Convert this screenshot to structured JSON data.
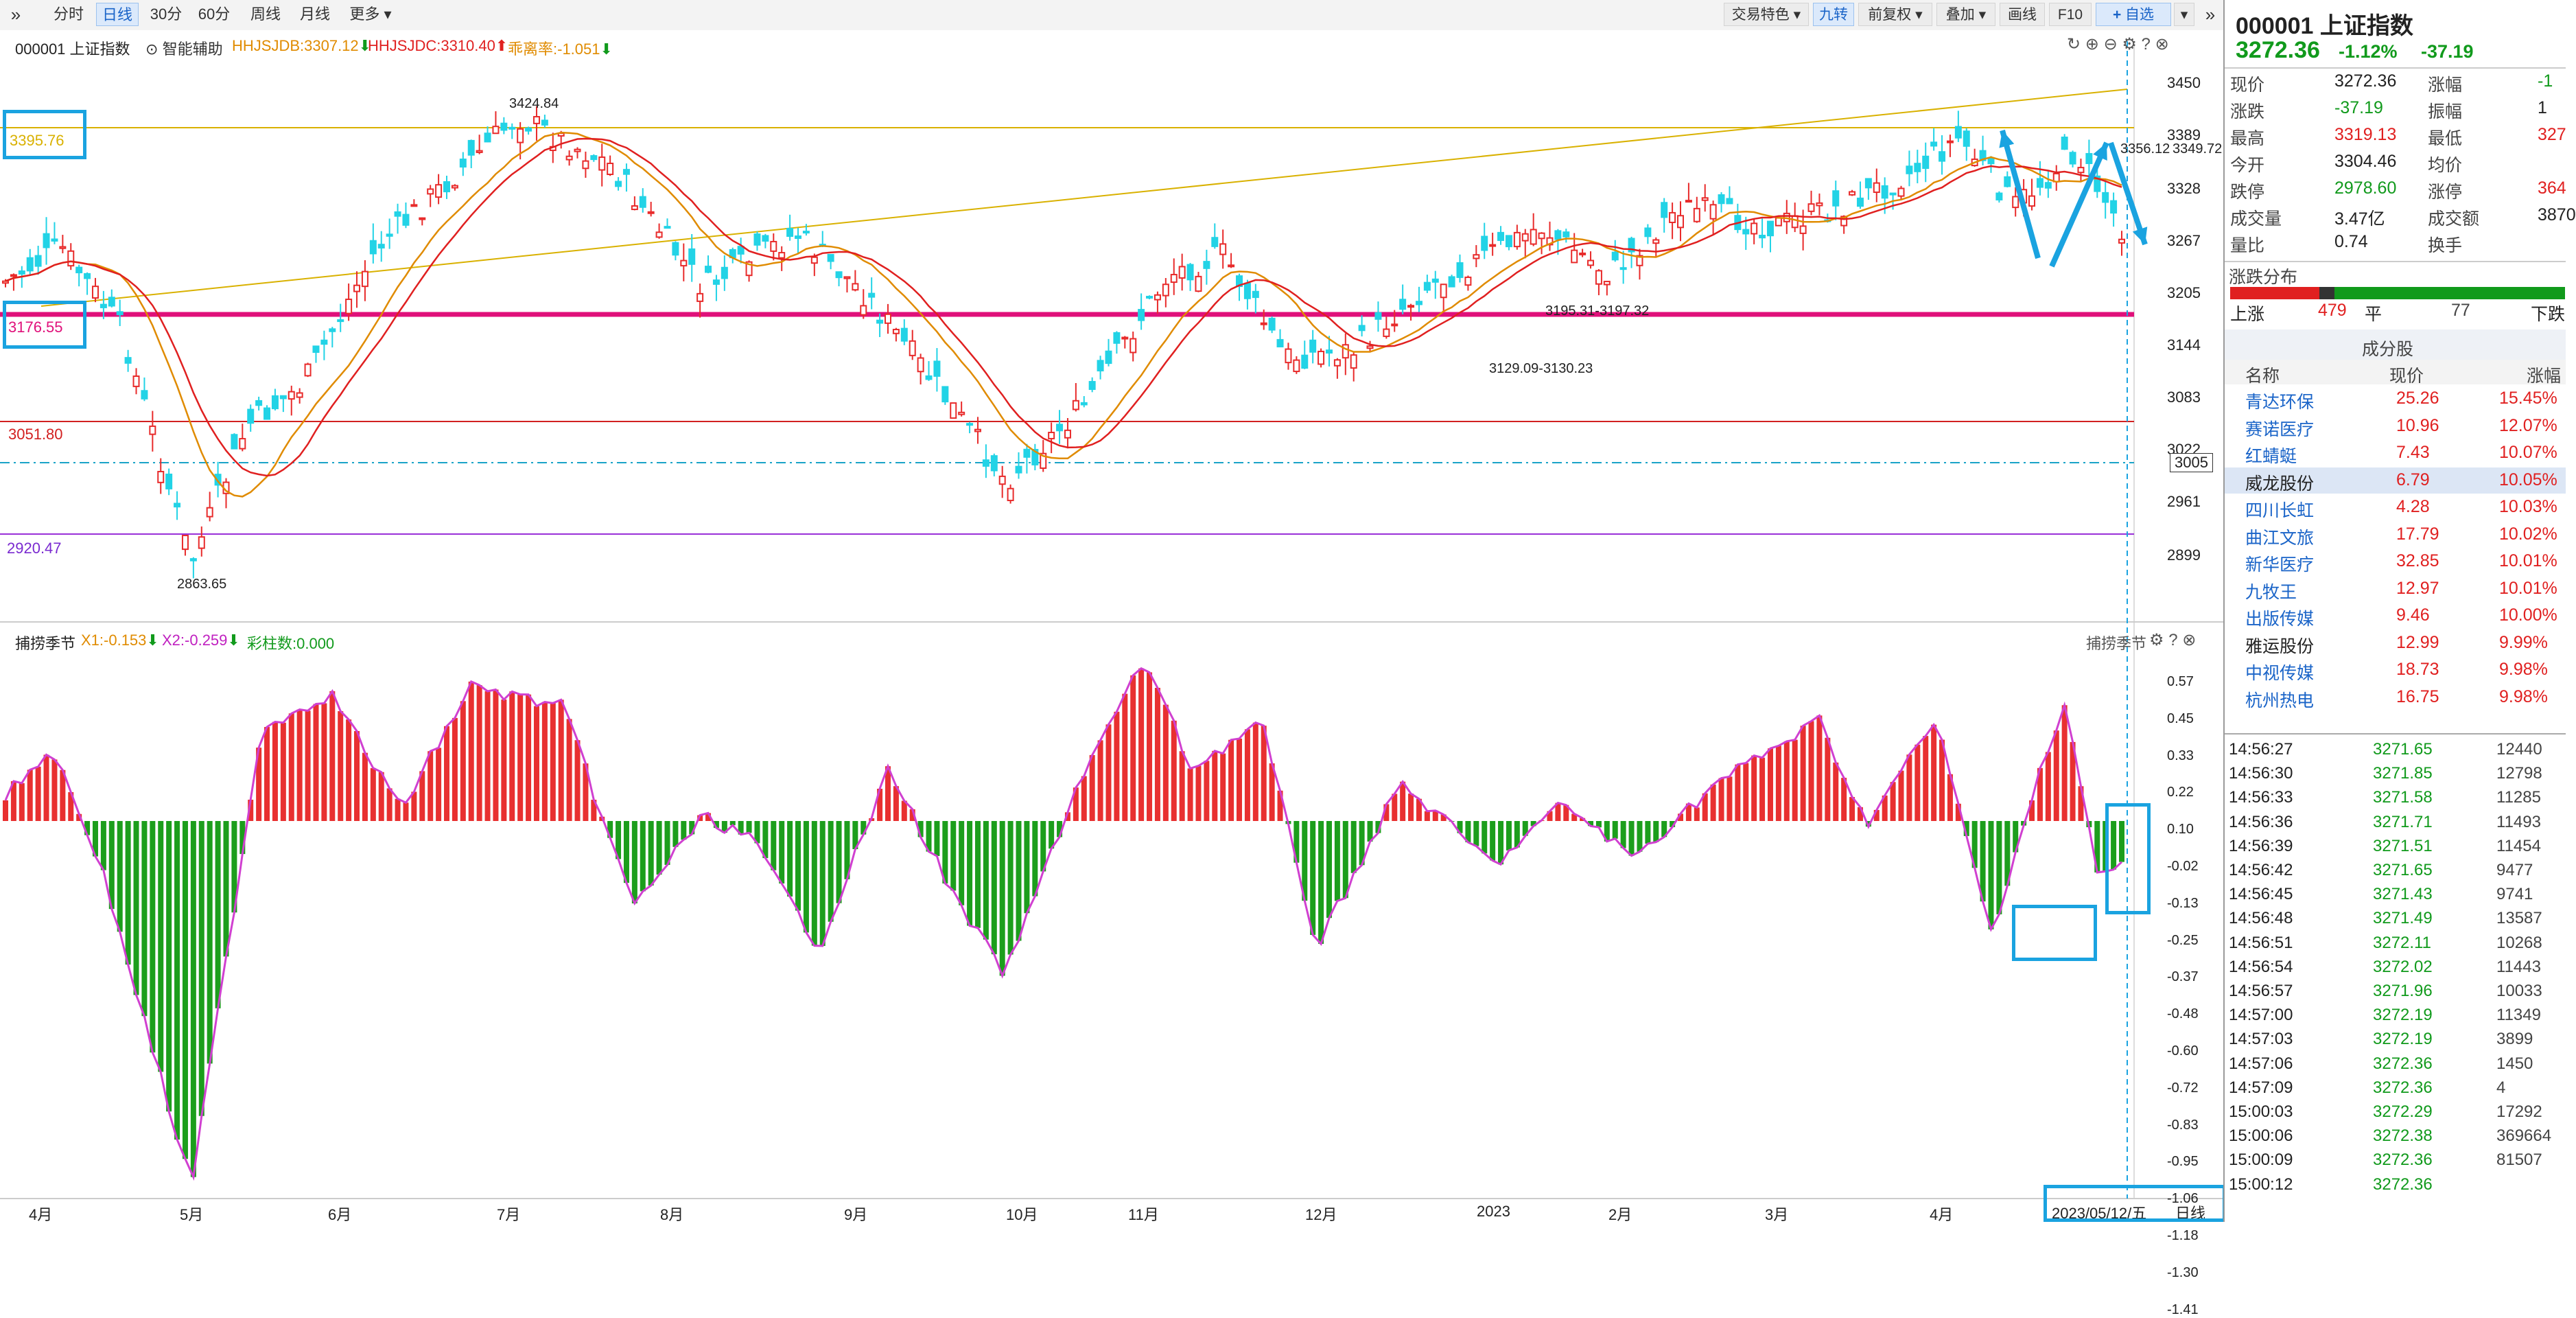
{
  "toolbar": {
    "nav_icon": "double-chevron-right-icon",
    "tabs": [
      "分时",
      "日线",
      "30分",
      "60分",
      "周线",
      "月线",
      "更多"
    ],
    "right_buttons": [
      "交易特色",
      "九转",
      "前复权",
      "叠加",
      "画线",
      "F10",
      "自选"
    ],
    "active_tab": "日线"
  },
  "main_chart": {
    "code_name": "000001 上证指数",
    "assist": "智能辅助",
    "ind1": "HHJSJDB:3307.12",
    "ind2": "HHJSJDC:3310.40",
    "ind3": "乖离率:-1.051",
    "price_axis": [
      "3450",
      "3389",
      "3328",
      "3267",
      "3205",
      "3144",
      "3083",
      "3022",
      "2961",
      "2899"
    ],
    "current_price_tag": "3005",
    "price_tag_2": "3349.72",
    "left_labels": [
      "3395.76",
      "3176.55",
      "3051.80",
      "2920.47"
    ],
    "annotations": [
      "3424.84",
      "2863.65",
      "3195.31-3197.32",
      "3129.09-3130.23",
      "3356.12"
    ]
  },
  "sub_chart": {
    "name": "捕捞季节",
    "x1": "X1:-0.153",
    "x2": "X2:-0.259",
    "cai": "彩柱数:0.000",
    "right_name": "捕捞季节",
    "axis": [
      "0.57",
      "0.45",
      "0.33",
      "0.22",
      "0.10",
      "-0.02",
      "-0.13",
      "-0.25",
      "-0.37",
      "-0.48",
      "-0.60",
      "-0.72",
      "-0.83",
      "-0.95",
      "-1.06",
      "-1.18",
      "-1.30",
      "-1.41"
    ]
  },
  "x_axis": [
    "4月",
    "5月",
    "6月",
    "7月",
    "8月",
    "9月",
    "10月",
    "11月",
    "12月",
    "2023",
    "2月",
    "3月",
    "4月"
  ],
  "bottom_date": "2023/05/12/五",
  "bottom_period": "日线",
  "panel": {
    "code": "000001",
    "name": "上证指数",
    "price": "3272.36",
    "change_pct": "-1.12%",
    "change": "-37.19",
    "rows": [
      [
        "现价",
        "3272.36",
        "涨幅",
        "-1"
      ],
      [
        "涨跌",
        "-37.19",
        "振幅",
        "1"
      ],
      [
        "最高",
        "3319.13",
        "最低",
        "327"
      ],
      [
        "今开",
        "3304.46",
        "均价",
        ""
      ],
      [
        "跌停",
        "2978.60",
        "涨停",
        "364"
      ],
      [
        "成交量",
        "3.47亿",
        "成交额",
        "3870"
      ],
      [
        "量比",
        "0.74",
        "换手",
        ""
      ]
    ],
    "dist_title": "涨跌分布",
    "dist": {
      "up_label": "上涨",
      "up": "479",
      "flat_label": "平",
      "flat": "77",
      "down_label": "下跌"
    },
    "comp_title": "成分股",
    "comp_headers": [
      "名称",
      "现价",
      "涨幅"
    ],
    "stocks": [
      [
        "青达环保",
        "25.26",
        "15.45%"
      ],
      [
        "赛诺医疗",
        "10.96",
        "12.07%"
      ],
      [
        "红蜻蜓",
        "7.43",
        "10.07%"
      ],
      [
        "威龙股份",
        "6.79",
        "10.05%"
      ],
      [
        "四川长虹",
        "4.28",
        "10.03%"
      ],
      [
        "曲江文旅",
        "17.79",
        "10.02%"
      ],
      [
        "新华医疗",
        "32.85",
        "10.01%"
      ],
      [
        "九牧王",
        "12.97",
        "10.01%"
      ],
      [
        "出版传媒",
        "9.46",
        "10.00%"
      ],
      [
        "雅运股份",
        "12.99",
        "9.99%"
      ],
      [
        "中视传媒",
        "18.73",
        "9.98%"
      ],
      [
        "杭州热电",
        "16.75",
        "9.98%"
      ]
    ],
    "ticks": [
      [
        "14:56:27",
        "3271.65",
        "12440"
      ],
      [
        "14:56:30",
        "3271.85",
        "12798"
      ],
      [
        "14:56:33",
        "3271.58",
        "11285"
      ],
      [
        "14:56:36",
        "3271.71",
        "11493"
      ],
      [
        "14:56:39",
        "3271.51",
        "11454"
      ],
      [
        "14:56:42",
        "3271.65",
        "9477"
      ],
      [
        "14:56:45",
        "3271.43",
        "9741"
      ],
      [
        "14:56:48",
        "3271.49",
        "13587"
      ],
      [
        "14:56:51",
        "3272.11",
        "10268"
      ],
      [
        "14:56:54",
        "3272.02",
        "11443"
      ],
      [
        "14:56:57",
        "3271.96",
        "10033"
      ],
      [
        "14:57:00",
        "3272.19",
        "11349"
      ],
      [
        "14:57:03",
        "3272.19",
        "3899"
      ],
      [
        "14:57:06",
        "3272.36",
        "1450"
      ],
      [
        "14:57:09",
        "3272.36",
        "4"
      ],
      [
        "15:00:03",
        "3272.29",
        "17292"
      ],
      [
        "15:00:06",
        "3272.38",
        "369664"
      ],
      [
        "15:00:09",
        "3272.36",
        "81507"
      ],
      [
        "15:00:12",
        "3272.36",
        ""
      ]
    ]
  }
}
